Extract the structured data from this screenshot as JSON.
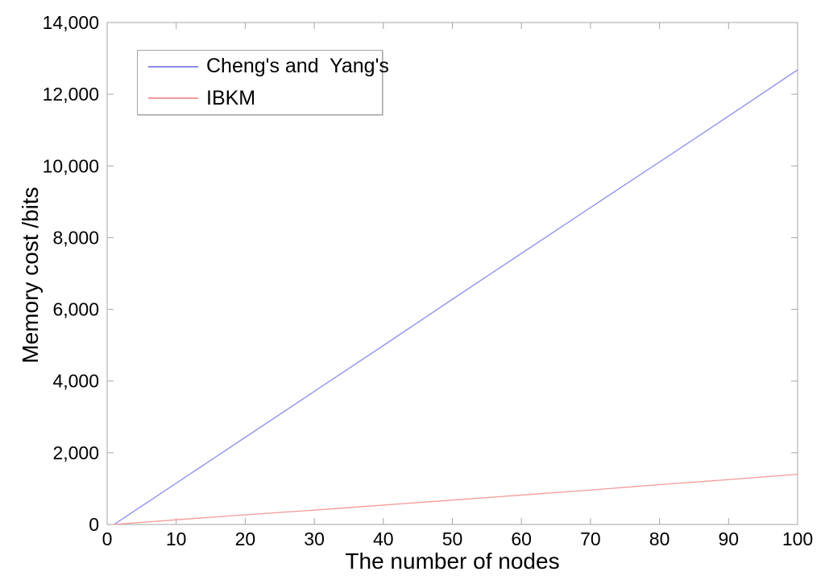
{
  "chart_data": {
    "type": "line",
    "title": "",
    "xlabel": "The number of nodes",
    "ylabel": "Memory cost /bits",
    "xlim": [
      0,
      100
    ],
    "ylim": [
      0,
      14000
    ],
    "grid": false,
    "legend_position": "top-left",
    "x_ticks": [
      0,
      10,
      20,
      30,
      40,
      50,
      60,
      70,
      80,
      90,
      100
    ],
    "x_tick_labels": [
      "0",
      "10",
      "20",
      "30",
      "40",
      "50",
      "60",
      "70",
      "80",
      "90",
      "100"
    ],
    "y_ticks": [
      0,
      2000,
      4000,
      6000,
      8000,
      10000,
      12000,
      14000
    ],
    "y_tick_labels": [
      "0",
      "2,000",
      "4,000",
      "6,000",
      "8,000",
      "10,000",
      "12,000",
      "14,000"
    ],
    "x": [
      1,
      10,
      20,
      30,
      40,
      50,
      60,
      70,
      80,
      90,
      100
    ],
    "series": [
      {
        "name": "Cheng's and  Yang's",
        "color": "#8a8aee",
        "values": [
          0,
          1150,
          2430,
          3710,
          4990,
          6280,
          7560,
          8840,
          10110,
          11390,
          12680
        ]
      },
      {
        "name": "IBKM",
        "color": "#f49a9a",
        "values": [
          0,
          130,
          270,
          400,
          540,
          680,
          820,
          960,
          1110,
          1250,
          1400
        ]
      }
    ]
  }
}
